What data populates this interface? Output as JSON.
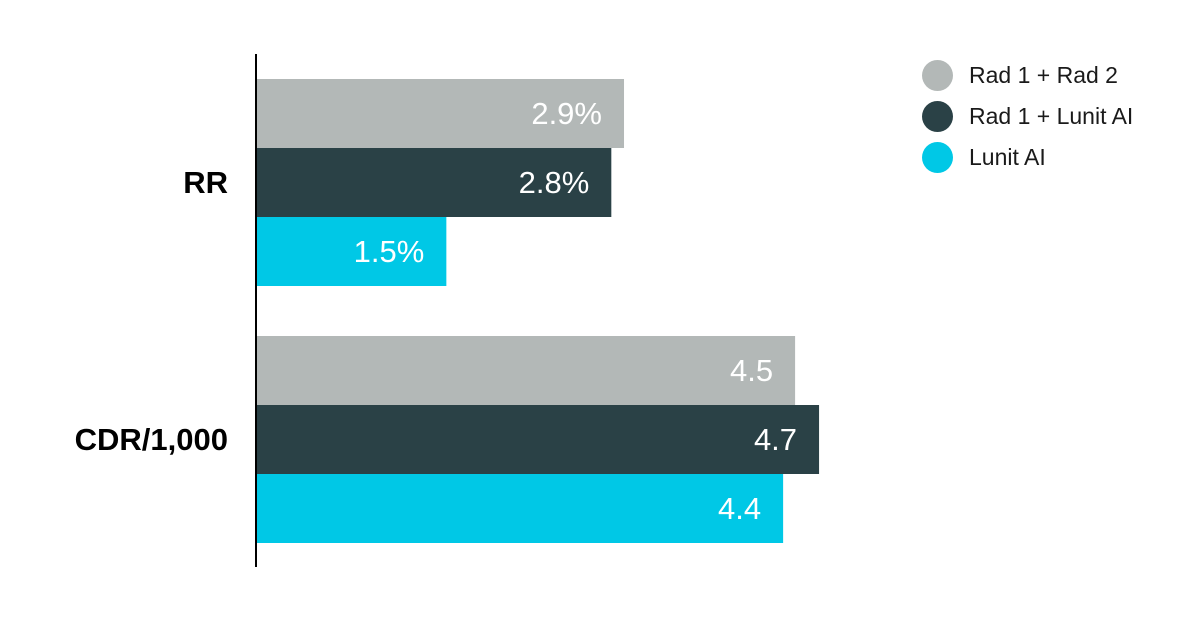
{
  "chart_data": {
    "type": "bar",
    "orientation": "horizontal",
    "categories": [
      "RR",
      "CDR/1,000"
    ],
    "series": [
      {
        "name": "Rad 1 + Rad 2",
        "color": "#b3b8b7",
        "values": [
          2.9,
          4.5
        ],
        "value_labels": [
          "2.9%",
          "4.5"
        ]
      },
      {
        "name": "Rad 1 + Lunit AI",
        "color": "#2a4146",
        "values": [
          2.8,
          4.7
        ],
        "value_labels": [
          "2.8%",
          "4.7"
        ]
      },
      {
        "name": "Lunit AI",
        "color": "#00c8e6",
        "values": [
          1.5,
          4.4
        ],
        "value_labels": [
          "1.5%",
          "4.4"
        ]
      }
    ],
    "legend_position": "top-right",
    "grid": false,
    "x_axis_visible": false,
    "label_color": "#ffffff"
  }
}
